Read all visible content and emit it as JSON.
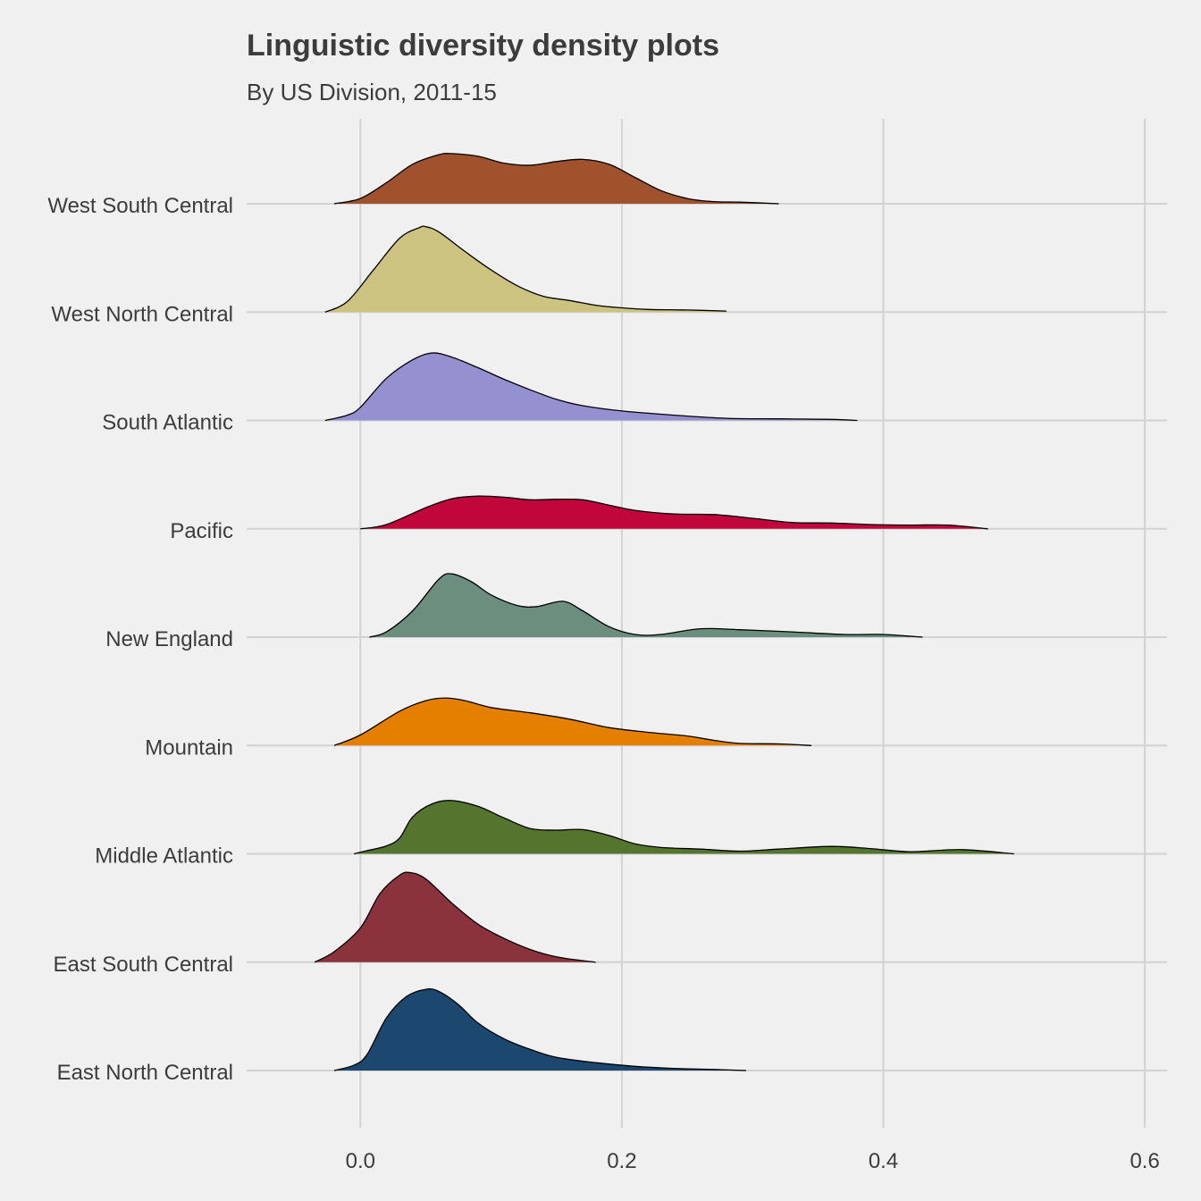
{
  "chart_data": {
    "type": "area",
    "subtype": "ridgeline-density",
    "title": "Linguistic diversity density plots",
    "subtitle": "By US Division, 2011-15",
    "xlabel": "",
    "ylabel": "",
    "xlim": [
      -0.087,
      0.617
    ],
    "x_ticks": [
      0.0,
      0.2,
      0.4,
      0.6
    ],
    "x_tick_labels": [
      "0.0",
      "0.2",
      "0.4",
      "0.6"
    ],
    "grid": true,
    "legend": "none",
    "categories": [
      "West South Central",
      "West North Central",
      "South Atlantic",
      "Pacific",
      "New England",
      "Mountain",
      "Middle Atlantic",
      "East South Central",
      "East North Central"
    ],
    "series": [
      {
        "name": "West South Central",
        "color": "#a0522d",
        "points": [
          [
            -0.02,
            0
          ],
          [
            0.0,
            0.01
          ],
          [
            0.02,
            0.04
          ],
          [
            0.04,
            0.075
          ],
          [
            0.06,
            0.093
          ],
          [
            0.07,
            0.095
          ],
          [
            0.09,
            0.09
          ],
          [
            0.11,
            0.077
          ],
          [
            0.13,
            0.073
          ],
          [
            0.15,
            0.08
          ],
          [
            0.17,
            0.084
          ],
          [
            0.19,
            0.075
          ],
          [
            0.21,
            0.05
          ],
          [
            0.23,
            0.025
          ],
          [
            0.25,
            0.01
          ],
          [
            0.27,
            0.004
          ],
          [
            0.29,
            0.003
          ],
          [
            0.32,
            0
          ]
        ]
      },
      {
        "name": "West North Central",
        "color": "#cdc381",
        "points": [
          [
            -0.027,
            0
          ],
          [
            -0.01,
            0.02
          ],
          [
            0.01,
            0.08
          ],
          [
            0.03,
            0.14
          ],
          [
            0.045,
            0.16
          ],
          [
            0.05,
            0.162
          ],
          [
            0.06,
            0.152
          ],
          [
            0.08,
            0.115
          ],
          [
            0.1,
            0.08
          ],
          [
            0.12,
            0.05
          ],
          [
            0.14,
            0.03
          ],
          [
            0.16,
            0.022
          ],
          [
            0.18,
            0.013
          ],
          [
            0.2,
            0.008
          ],
          [
            0.22,
            0.005
          ],
          [
            0.25,
            0.004
          ],
          [
            0.28,
            0.002
          ]
        ]
      },
      {
        "name": "South Atlantic",
        "color": "#9590d0",
        "points": [
          [
            -0.027,
            0
          ],
          [
            -0.01,
            0.01
          ],
          [
            0.0,
            0.025
          ],
          [
            0.02,
            0.08
          ],
          [
            0.04,
            0.115
          ],
          [
            0.055,
            0.128
          ],
          [
            0.07,
            0.12
          ],
          [
            0.09,
            0.1
          ],
          [
            0.11,
            0.078
          ],
          [
            0.13,
            0.058
          ],
          [
            0.15,
            0.04
          ],
          [
            0.17,
            0.028
          ],
          [
            0.2,
            0.018
          ],
          [
            0.24,
            0.01
          ],
          [
            0.28,
            0.004
          ],
          [
            0.32,
            0.003
          ],
          [
            0.36,
            0.002
          ],
          [
            0.38,
            0
          ]
        ]
      },
      {
        "name": "Pacific",
        "color": "#c0063a",
        "points": [
          [
            0.0,
            0
          ],
          [
            0.02,
            0.008
          ],
          [
            0.05,
            0.04
          ],
          [
            0.07,
            0.057
          ],
          [
            0.09,
            0.062
          ],
          [
            0.11,
            0.06
          ],
          [
            0.13,
            0.055
          ],
          [
            0.15,
            0.056
          ],
          [
            0.17,
            0.055
          ],
          [
            0.19,
            0.045
          ],
          [
            0.21,
            0.035
          ],
          [
            0.24,
            0.028
          ],
          [
            0.27,
            0.027
          ],
          [
            0.3,
            0.02
          ],
          [
            0.33,
            0.012
          ],
          [
            0.36,
            0.011
          ],
          [
            0.39,
            0.008
          ],
          [
            0.42,
            0.007
          ],
          [
            0.45,
            0.007
          ],
          [
            0.48,
            0
          ]
        ]
      },
      {
        "name": "New England",
        "color": "#6b8e7f",
        "points": [
          [
            0.007,
            0
          ],
          [
            0.02,
            0.01
          ],
          [
            0.04,
            0.05
          ],
          [
            0.06,
            0.11
          ],
          [
            0.07,
            0.12
          ],
          [
            0.085,
            0.105
          ],
          [
            0.1,
            0.08
          ],
          [
            0.12,
            0.06
          ],
          [
            0.135,
            0.058
          ],
          [
            0.155,
            0.068
          ],
          [
            0.17,
            0.05
          ],
          [
            0.19,
            0.02
          ],
          [
            0.21,
            0.005
          ],
          [
            0.23,
            0.005
          ],
          [
            0.26,
            0.016
          ],
          [
            0.29,
            0.014
          ],
          [
            0.33,
            0.01
          ],
          [
            0.37,
            0.005
          ],
          [
            0.4,
            0.005
          ],
          [
            0.43,
            0
          ]
        ]
      },
      {
        "name": "Mountain",
        "color": "#e57f00",
        "points": [
          [
            -0.02,
            0
          ],
          [
            0.0,
            0.02
          ],
          [
            0.03,
            0.065
          ],
          [
            0.05,
            0.085
          ],
          [
            0.065,
            0.09
          ],
          [
            0.08,
            0.085
          ],
          [
            0.1,
            0.072
          ],
          [
            0.13,
            0.062
          ],
          [
            0.16,
            0.05
          ],
          [
            0.19,
            0.034
          ],
          [
            0.22,
            0.025
          ],
          [
            0.25,
            0.018
          ],
          [
            0.27,
            0.01
          ],
          [
            0.29,
            0.004
          ],
          [
            0.32,
            0.003
          ],
          [
            0.345,
            0
          ]
        ]
      },
      {
        "name": "Middle Atlantic",
        "color": "#55752e",
        "points": [
          [
            -0.005,
            0
          ],
          [
            0.005,
            0.006
          ],
          [
            0.02,
            0.015
          ],
          [
            0.03,
            0.03
          ],
          [
            0.04,
            0.07
          ],
          [
            0.055,
            0.095
          ],
          [
            0.07,
            0.101
          ],
          [
            0.09,
            0.09
          ],
          [
            0.11,
            0.068
          ],
          [
            0.13,
            0.048
          ],
          [
            0.15,
            0.045
          ],
          [
            0.17,
            0.046
          ],
          [
            0.19,
            0.035
          ],
          [
            0.21,
            0.019
          ],
          [
            0.23,
            0.012
          ],
          [
            0.26,
            0.009
          ],
          [
            0.29,
            0.005
          ],
          [
            0.32,
            0.009
          ],
          [
            0.36,
            0.014
          ],
          [
            0.39,
            0.01
          ],
          [
            0.42,
            0.004
          ],
          [
            0.46,
            0.008
          ],
          [
            0.5,
            0
          ]
        ]
      },
      {
        "name": "East South Central",
        "color": "#8b333d",
        "points": [
          [
            -0.035,
            0
          ],
          [
            -0.02,
            0.02
          ],
          [
            0.0,
            0.065
          ],
          [
            0.015,
            0.13
          ],
          [
            0.03,
            0.165
          ],
          [
            0.038,
            0.17
          ],
          [
            0.05,
            0.158
          ],
          [
            0.07,
            0.112
          ],
          [
            0.09,
            0.072
          ],
          [
            0.11,
            0.045
          ],
          [
            0.13,
            0.024
          ],
          [
            0.15,
            0.01
          ],
          [
            0.17,
            0.003
          ],
          [
            0.18,
            0
          ]
        ]
      },
      {
        "name": "East North Central",
        "color": "#1c4870",
        "points": [
          [
            -0.02,
            0
          ],
          [
            -0.005,
            0.01
          ],
          [
            0.005,
            0.03
          ],
          [
            0.02,
            0.1
          ],
          [
            0.035,
            0.14
          ],
          [
            0.05,
            0.154
          ],
          [
            0.06,
            0.15
          ],
          [
            0.075,
            0.125
          ],
          [
            0.09,
            0.09
          ],
          [
            0.11,
            0.06
          ],
          [
            0.13,
            0.04
          ],
          [
            0.15,
            0.025
          ],
          [
            0.18,
            0.015
          ],
          [
            0.21,
            0.008
          ],
          [
            0.24,
            0.004
          ],
          [
            0.27,
            0.002
          ],
          [
            0.295,
            0
          ]
        ]
      }
    ]
  }
}
